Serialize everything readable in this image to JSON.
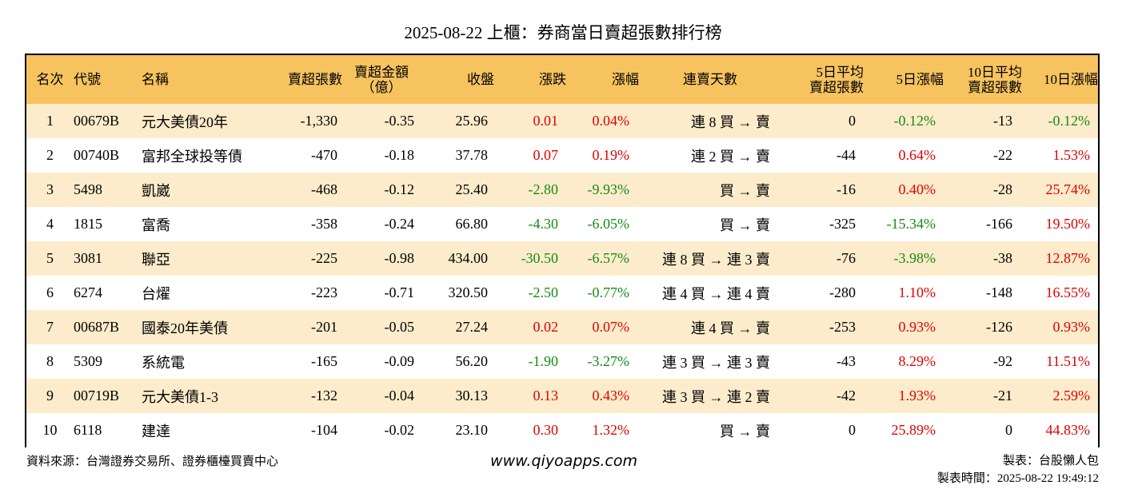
{
  "title": "2025-08-22 上櫃：券商當日賣超張數排行榜",
  "headers": {
    "rank": "名次",
    "code": "代號",
    "name": "名稱",
    "sell_shares": "賣超張數",
    "sell_amount_l1": "賣超金額",
    "sell_amount_l2": "（億）",
    "close": "收盤",
    "change": "漲跌",
    "change_pct": "漲幅",
    "streak": "連賣天數",
    "avg5_l1": "5日平均",
    "avg5_l2": "賣超張數",
    "pct5": "5日漲幅",
    "avg10_l1": "10日平均",
    "avg10_l2": "賣超張數",
    "pct10": "10日漲幅"
  },
  "rows": [
    {
      "rank": "1",
      "code": "00679B",
      "name": "元大美債20年",
      "sell_shares": "-1,330",
      "sell_amount": "-0.35",
      "close": "25.96",
      "change": "0.01",
      "change_pct": "0.04%",
      "streak": "連 8 買 → 賣",
      "avg5": "0",
      "pct5": "-0.12%",
      "avg10": "-13",
      "pct10": "-0.12%"
    },
    {
      "rank": "2",
      "code": "00740B",
      "name": "富邦全球投等債",
      "sell_shares": "-470",
      "sell_amount": "-0.18",
      "close": "37.78",
      "change": "0.07",
      "change_pct": "0.19%",
      "streak": "連 2 買 → 賣",
      "avg5": "-44",
      "pct5": "0.64%",
      "avg10": "-22",
      "pct10": "1.53%"
    },
    {
      "rank": "3",
      "code": "5498",
      "name": "凱崴",
      "sell_shares": "-468",
      "sell_amount": "-0.12",
      "close": "25.40",
      "change": "-2.80",
      "change_pct": "-9.93%",
      "streak": "買 → 賣",
      "avg5": "-16",
      "pct5": "0.40%",
      "avg10": "-28",
      "pct10": "25.74%"
    },
    {
      "rank": "4",
      "code": "1815",
      "name": "富喬",
      "sell_shares": "-358",
      "sell_amount": "-0.24",
      "close": "66.80",
      "change": "-4.30",
      "change_pct": "-6.05%",
      "streak": "買 → 賣",
      "avg5": "-325",
      "pct5": "-15.34%",
      "avg10": "-166",
      "pct10": "19.50%"
    },
    {
      "rank": "5",
      "code": "3081",
      "name": "聯亞",
      "sell_shares": "-225",
      "sell_amount": "-0.98",
      "close": "434.00",
      "change": "-30.50",
      "change_pct": "-6.57%",
      "streak": "連 8 買 → 連 3 賣",
      "avg5": "-76",
      "pct5": "-3.98%",
      "avg10": "-38",
      "pct10": "12.87%"
    },
    {
      "rank": "6",
      "code": "6274",
      "name": "台燿",
      "sell_shares": "-223",
      "sell_amount": "-0.71",
      "close": "320.50",
      "change": "-2.50",
      "change_pct": "-0.77%",
      "streak": "連 4 買 → 連 4 賣",
      "avg5": "-280",
      "pct5": "1.10%",
      "avg10": "-148",
      "pct10": "16.55%"
    },
    {
      "rank": "7",
      "code": "00687B",
      "name": "國泰20年美債",
      "sell_shares": "-201",
      "sell_amount": "-0.05",
      "close": "27.24",
      "change": "0.02",
      "change_pct": "0.07%",
      "streak": "連 4 買 → 賣",
      "avg5": "-253",
      "pct5": "0.93%",
      "avg10": "-126",
      "pct10": "0.93%"
    },
    {
      "rank": "8",
      "code": "5309",
      "name": "系統電",
      "sell_shares": "-165",
      "sell_amount": "-0.09",
      "close": "56.20",
      "change": "-1.90",
      "change_pct": "-3.27%",
      "streak": "連 3 買 → 連 3 賣",
      "avg5": "-43",
      "pct5": "8.29%",
      "avg10": "-92",
      "pct10": "11.51%"
    },
    {
      "rank": "9",
      "code": "00719B",
      "name": "元大美債1-3",
      "sell_shares": "-132",
      "sell_amount": "-0.04",
      "close": "30.13",
      "change": "0.13",
      "change_pct": "0.43%",
      "streak": "連 3 買 → 連 2 賣",
      "avg5": "-42",
      "pct5": "1.93%",
      "avg10": "-21",
      "pct10": "2.59%"
    },
    {
      "rank": "10",
      "code": "6118",
      "name": "建達",
      "sell_shares": "-104",
      "sell_amount": "-0.02",
      "close": "23.10",
      "change": "0.30",
      "change_pct": "1.32%",
      "streak": "買 → 賣",
      "avg5": "0",
      "pct5": "25.89%",
      "avg10": "0",
      "pct10": "44.83%"
    }
  ],
  "footer": {
    "source": "資料來源：台灣證券交易所、證券櫃檯買賣中心",
    "website": "www.qiyoapps.com",
    "author": "製表：台股懶人包",
    "made_time": "製表時間：2025-08-22 19:49:12"
  },
  "colors": {
    "header_bg": "#f6c35f",
    "row_alt_bg": "#fdeccb",
    "up": "#e00000",
    "down": "#168a16"
  }
}
